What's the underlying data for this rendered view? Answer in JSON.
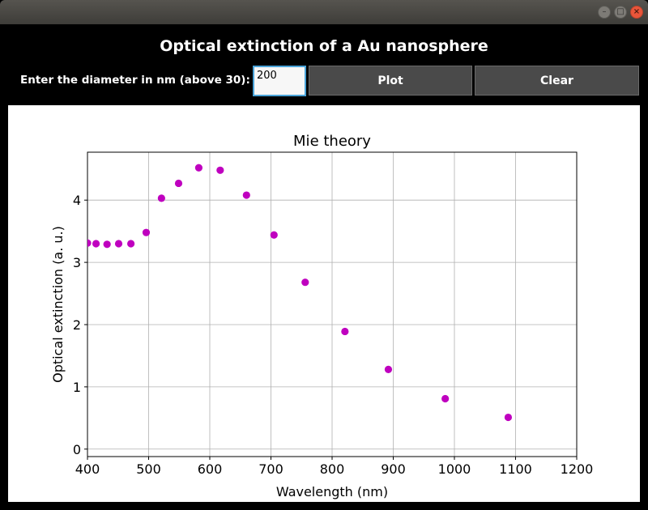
{
  "window": {
    "controls": [
      "minimize-icon",
      "maximize-icon",
      "close-icon"
    ]
  },
  "header": {
    "title": "Optical extinction of a Au nanosphere"
  },
  "controls": {
    "diameter_label": "Enter the diameter in nm (above 30):",
    "diameter_value": "200",
    "plot_label": "Plot",
    "clear_label": "Clear"
  },
  "colors": {
    "marker": "#bf00bf",
    "grid": "#b0b0b0",
    "background": "#000000",
    "button": "#4a4a4a",
    "input_border": "#4aa3d8"
  },
  "chart_data": {
    "type": "scatter",
    "title": "Mie theory",
    "xlabel": "Wavelength (nm)",
    "ylabel": "Optical extinction (a. u.)",
    "xlim": [
      400,
      1200
    ],
    "ylim": [
      -0.12,
      4.77
    ],
    "xticks": [
      400,
      500,
      600,
      700,
      800,
      900,
      1000,
      1100,
      1200
    ],
    "yticks": [
      0,
      1,
      2,
      3,
      4
    ],
    "grid": true,
    "series": [
      {
        "x": [
          400,
          414,
          432,
          451,
          471,
          496,
          521,
          549,
          582,
          617,
          660,
          705,
          756,
          821,
          892,
          985,
          1088
        ],
        "y": [
          3.31,
          3.3,
          3.29,
          3.3,
          3.3,
          3.48,
          4.03,
          4.27,
          4.52,
          4.48,
          4.08,
          3.44,
          2.68,
          1.89,
          1.28,
          0.81,
          0.51
        ]
      }
    ]
  }
}
